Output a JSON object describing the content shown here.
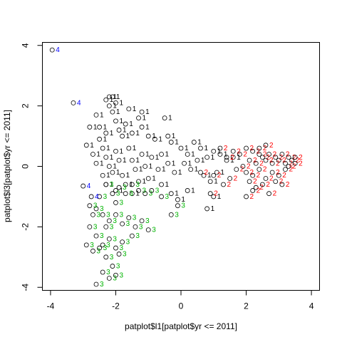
{
  "chart_data": {
    "type": "scatter",
    "title": "",
    "xlabel": "patplot$l1[patplot$yr <= 2011]",
    "ylabel": "patplot$l3[patplot$yr <= 2011]",
    "xlim": [
      -4.25,
      4.25
    ],
    "ylim": [
      -4.1,
      4.1
    ],
    "x_ticks": [
      -4,
      -2,
      0,
      2,
      4
    ],
    "y_ticks": [
      -4,
      -2,
      0,
      2,
      4
    ],
    "x_tick_labels": [
      "-4",
      "-2",
      "0",
      "2",
      "4"
    ],
    "y_tick_labels": [
      "-4",
      "-2",
      "0",
      "2",
      "4"
    ],
    "grid": false,
    "legend": "none",
    "colors": {
      "1": "#000000",
      "2": "#ff0000",
      "3": "#00b400",
      "4": "#0000ff"
    },
    "series": [
      {
        "label": "1",
        "points": [
          [
            -2.6,
            1.7
          ],
          [
            -2.3,
            2.2
          ],
          [
            -2.2,
            2.0
          ],
          [
            -2.1,
            1.8
          ],
          [
            -2.0,
            1.5
          ],
          [
            -1.9,
            1.2
          ],
          [
            -1.8,
            1.0
          ],
          [
            -1.7,
            1.4
          ],
          [
            -1.5,
            1.1
          ],
          [
            -1.3,
            1.6
          ],
          [
            -1.2,
            1.3
          ],
          [
            -1.0,
            1.0
          ],
          [
            -0.8,
            0.9
          ],
          [
            -0.5,
            1.6
          ],
          [
            -0.4,
            1.0
          ],
          [
            -0.3,
            0.8
          ],
          [
            0.0,
            0.6
          ],
          [
            0.2,
            0.4
          ],
          [
            0.4,
            0.8
          ],
          [
            0.6,
            0.6
          ],
          [
            0.8,
            0.3
          ],
          [
            1.0,
            0.5
          ],
          [
            1.2,
            0.4
          ],
          [
            1.4,
            0.2
          ],
          [
            1.6,
            0.3
          ],
          [
            -2.8,
            1.3
          ],
          [
            -2.5,
            0.9
          ],
          [
            -2.4,
            0.6
          ],
          [
            -2.3,
            0.3
          ],
          [
            -2.2,
            0.0
          ],
          [
            -2.1,
            -0.2
          ],
          [
            -2.0,
            0.5
          ],
          [
            -1.9,
            0.2
          ],
          [
            -1.8,
            -0.3
          ],
          [
            -1.6,
            0.6
          ],
          [
            -1.5,
            0.2
          ],
          [
            -1.4,
            -0.1
          ],
          [
            -1.2,
            0.4
          ],
          [
            -1.1,
            0.0
          ],
          [
            -0.9,
            0.3
          ],
          [
            -0.7,
            -0.1
          ],
          [
            -0.6,
            0.4
          ],
          [
            -0.4,
            0.1
          ],
          [
            -0.2,
            -0.2
          ],
          [
            0.1,
            0.1
          ],
          [
            0.3,
            -0.1
          ],
          [
            0.5,
            0.2
          ],
          [
            0.7,
            -0.3
          ],
          [
            0.9,
            -0.5
          ],
          [
            1.1,
            -0.2
          ],
          [
            -2.9,
            0.7
          ],
          [
            -2.7,
            0.4
          ],
          [
            -2.6,
            0.1
          ],
          [
            -2.4,
            -0.3
          ],
          [
            -2.3,
            -0.6
          ],
          [
            -2.0,
            -0.8
          ],
          [
            -1.7,
            -0.6
          ],
          [
            -1.5,
            -0.9
          ],
          [
            -1.3,
            -0.5
          ],
          [
            -1.0,
            -0.4
          ],
          [
            -0.6,
            -0.6
          ],
          [
            -0.3,
            -0.9
          ],
          [
            -0.1,
            -1.1
          ],
          [
            0.2,
            -0.8
          ],
          [
            0.8,
            -1.4
          ],
          [
            1.0,
            -1.0
          ],
          [
            -2.2,
            2.3
          ],
          [
            -2.1,
            2.3
          ],
          [
            -2.0,
            2.1
          ],
          [
            -2.5,
            1.3
          ],
          [
            -2.3,
            1.1
          ],
          [
            -1.6,
            1.9
          ],
          [
            -1.2,
            1.8
          ]
        ]
      },
      {
        "label": "2",
        "points": [
          [
            1.2,
            0.6
          ],
          [
            1.4,
            0.3
          ],
          [
            1.6,
            0.5
          ],
          [
            1.8,
            0.4
          ],
          [
            2.0,
            0.6
          ],
          [
            2.1,
            0.2
          ],
          [
            2.2,
            0.5
          ],
          [
            2.3,
            0.1
          ],
          [
            2.4,
            0.4
          ],
          [
            2.5,
            0.3
          ],
          [
            2.6,
            0.2
          ],
          [
            2.7,
            0.4
          ],
          [
            2.8,
            0.1
          ],
          [
            2.9,
            0.3
          ],
          [
            3.0,
            0.2
          ],
          [
            3.1,
            0.4
          ],
          [
            3.2,
            0.1
          ],
          [
            3.3,
            0.3
          ],
          [
            3.4,
            0.2
          ],
          [
            3.5,
            0.3
          ],
          [
            2.0,
            -0.2
          ],
          [
            2.2,
            -0.3
          ],
          [
            2.4,
            -0.1
          ],
          [
            2.6,
            -0.4
          ],
          [
            2.8,
            -0.2
          ],
          [
            3.0,
            -0.3
          ],
          [
            3.2,
            -0.1
          ],
          [
            2.1,
            -0.5
          ],
          [
            2.3,
            -0.7
          ],
          [
            2.5,
            -0.6
          ],
          [
            2.7,
            -0.9
          ],
          [
            1.5,
            -0.4
          ],
          [
            1.7,
            -0.1
          ],
          [
            1.9,
            0.0
          ],
          [
            2.0,
            -1.0
          ],
          [
            2.2,
            -0.8
          ],
          [
            1.3,
            -0.6
          ],
          [
            0.9,
            -0.9
          ],
          [
            1.0,
            -0.3
          ],
          [
            0.6,
            -0.2
          ],
          [
            3.3,
            0.0
          ],
          [
            3.5,
            0.1
          ],
          [
            2.9,
            -0.5
          ],
          [
            3.1,
            -0.6
          ],
          [
            2.4,
            0.6
          ],
          [
            2.6,
            0.7
          ]
        ]
      },
      {
        "label": "3",
        "points": [
          [
            -2.3,
            -0.6
          ],
          [
            -2.1,
            -0.9
          ],
          [
            -1.9,
            -0.7
          ],
          [
            -1.7,
            -0.9
          ],
          [
            -1.5,
            -0.6
          ],
          [
            -1.3,
            -0.8
          ],
          [
            -1.1,
            -0.9
          ],
          [
            -0.9,
            -0.8
          ],
          [
            -0.6,
            -1.0
          ],
          [
            -0.3,
            -1.6
          ],
          [
            -0.1,
            -1.3
          ],
          [
            -2.6,
            -1.4
          ],
          [
            -2.4,
            -1.6
          ],
          [
            -2.2,
            -1.8
          ],
          [
            -2.0,
            -1.6
          ],
          [
            -1.8,
            -1.9
          ],
          [
            -1.6,
            -1.7
          ],
          [
            -1.4,
            -2.0
          ],
          [
            -1.2,
            -1.8
          ],
          [
            -1.0,
            -2.1
          ],
          [
            -2.8,
            -2.0
          ],
          [
            -2.6,
            -2.3
          ],
          [
            -2.4,
            -2.6
          ],
          [
            -2.2,
            -2.4
          ],
          [
            -2.0,
            -2.7
          ],
          [
            -1.8,
            -2.5
          ],
          [
            -2.9,
            -2.6
          ],
          [
            -2.7,
            -2.8
          ],
          [
            -2.5,
            -2.7
          ],
          [
            -2.3,
            -3.0
          ],
          [
            -2.1,
            -3.3
          ],
          [
            -2.4,
            -3.5
          ],
          [
            -2.2,
            -3.7
          ],
          [
            -2.0,
            -3.6
          ],
          [
            -2.6,
            -3.9
          ],
          [
            -2.0,
            -1.2
          ],
          [
            -2.5,
            -1.0
          ],
          [
            -2.7,
            -1.6
          ],
          [
            -1.5,
            -2.3
          ],
          [
            -1.9,
            -2.9
          ],
          [
            -2.8,
            -1.3
          ],
          [
            -2.3,
            -2.0
          ]
        ]
      },
      {
        "label": "4",
        "points": [
          [
            -3.95,
            3.85
          ],
          [
            -3.3,
            2.1
          ],
          [
            -3.0,
            -0.65
          ],
          [
            -2.75,
            -1.0
          ]
        ]
      }
    ]
  }
}
